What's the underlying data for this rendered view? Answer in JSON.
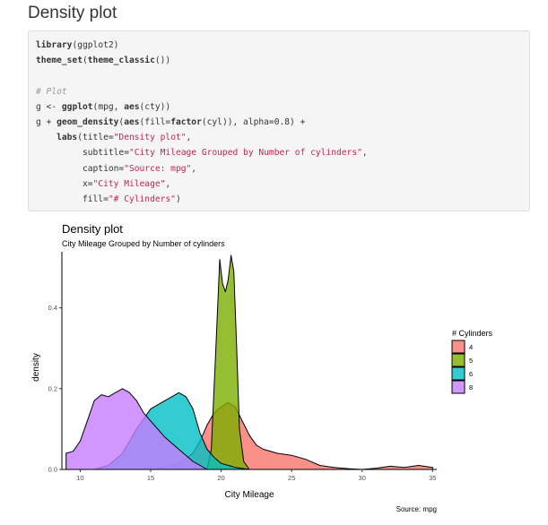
{
  "page": {
    "heading": "Density plot"
  },
  "code": {
    "lines": [
      [
        {
          "t": "library",
          "c": "fn"
        },
        {
          "t": "(ggplot2)",
          "c": "plain"
        }
      ],
      [
        {
          "t": "theme_set",
          "c": "fn"
        },
        {
          "t": "(",
          "c": "plain"
        },
        {
          "t": "theme_classic",
          "c": "fn"
        },
        {
          "t": "())",
          "c": "plain"
        }
      ],
      [],
      [
        {
          "t": "# Plot",
          "c": "comment"
        }
      ],
      [
        {
          "t": "g <- ",
          "c": "plain"
        },
        {
          "t": "ggplot",
          "c": "fn"
        },
        {
          "t": "(mpg, ",
          "c": "plain"
        },
        {
          "t": "aes",
          "c": "fn"
        },
        {
          "t": "(cty))",
          "c": "plain"
        }
      ],
      [
        {
          "t": "g + ",
          "c": "plain"
        },
        {
          "t": "geom_density",
          "c": "fn"
        },
        {
          "t": "(",
          "c": "plain"
        },
        {
          "t": "aes",
          "c": "fn"
        },
        {
          "t": "(fill=",
          "c": "plain"
        },
        {
          "t": "factor",
          "c": "fn"
        },
        {
          "t": "(cyl)), alpha=",
          "c": "plain"
        },
        {
          "t": "0.8",
          "c": "num"
        },
        {
          "t": ") +",
          "c": "plain"
        }
      ],
      [
        {
          "t": "    ",
          "c": "plain"
        },
        {
          "t": "labs",
          "c": "fn"
        },
        {
          "t": "(title=",
          "c": "plain"
        },
        {
          "t": "\"Density plot\"",
          "c": "str"
        },
        {
          "t": ",",
          "c": "plain"
        }
      ],
      [
        {
          "t": "         subtitle=",
          "c": "plain"
        },
        {
          "t": "\"City Mileage Grouped by Number of cylinders\"",
          "c": "str"
        },
        {
          "t": ",",
          "c": "plain"
        }
      ],
      [
        {
          "t": "         caption=",
          "c": "plain"
        },
        {
          "t": "\"Source: mpg\"",
          "c": "str"
        },
        {
          "t": ",",
          "c": "plain"
        }
      ],
      [
        {
          "t": "         x=",
          "c": "plain"
        },
        {
          "t": "\"City Mileage\"",
          "c": "str"
        },
        {
          "t": ",",
          "c": "plain"
        }
      ],
      [
        {
          "t": "         fill=",
          "c": "plain"
        },
        {
          "t": "\"# Cylinders\"",
          "c": "str"
        },
        {
          "t": ")",
          "c": "plain"
        }
      ]
    ]
  },
  "chart_data": {
    "type": "area",
    "title": "Density plot",
    "subtitle": "City Mileage Grouped by Number of cylinders",
    "caption": "Source: mpg",
    "xlabel": "City Mileage",
    "ylabel": "density",
    "xlim": [
      8.7,
      35.3
    ],
    "ylim": [
      0,
      0.53
    ],
    "xticks": [
      10,
      15,
      20,
      25,
      30,
      35
    ],
    "yticks": [
      0.0,
      0.2,
      0.4
    ],
    "ytick_labels": [
      "0.0",
      "0.2",
      "0.4"
    ],
    "grid": false,
    "legend": {
      "title": "# Cylinders",
      "position": "right"
    },
    "alpha": 0.8,
    "series": [
      {
        "name": "4",
        "color": "#F8766D",
        "x": [
          15,
          16,
          17,
          18,
          18.5,
          19,
          19.5,
          20,
          20.5,
          21,
          21.5,
          22,
          22.5,
          23,
          24,
          25,
          26,
          27,
          28,
          29,
          30,
          31,
          32,
          33,
          34,
          35
        ],
        "y": [
          0.0,
          0.005,
          0.015,
          0.04,
          0.07,
          0.11,
          0.14,
          0.155,
          0.165,
          0.155,
          0.12,
          0.085,
          0.06,
          0.05,
          0.04,
          0.035,
          0.025,
          0.01,
          0.005,
          0.002,
          0.0,
          0.003,
          0.008,
          0.005,
          0.01,
          0.005
        ]
      },
      {
        "name": "5",
        "color": "#7CAE00",
        "x": [
          19,
          19.3,
          19.6,
          19.9,
          20.1,
          20.3,
          20.5,
          20.7,
          20.9,
          21.1,
          21.3,
          21.6,
          22
        ],
        "y": [
          0.0,
          0.05,
          0.28,
          0.52,
          0.46,
          0.44,
          0.47,
          0.53,
          0.49,
          0.3,
          0.1,
          0.02,
          0.0
        ]
      },
      {
        "name": "6",
        "color": "#00BFC4",
        "x": [
          11,
          12,
          13,
          14,
          15,
          15.5,
          16,
          16.5,
          17,
          17.5,
          18,
          18.5,
          19,
          19.5,
          20,
          21,
          22
        ],
        "y": [
          0.0,
          0.01,
          0.04,
          0.1,
          0.15,
          0.16,
          0.17,
          0.18,
          0.19,
          0.18,
          0.15,
          0.09,
          0.05,
          0.03,
          0.015,
          0.005,
          0.0
        ]
      },
      {
        "name": "8",
        "color": "#C77CFF",
        "x": [
          9,
          9.5,
          10,
          10.5,
          11,
          11.5,
          12,
          12.5,
          13,
          13.5,
          14,
          14.5,
          15,
          15.5,
          16,
          17,
          18,
          19
        ],
        "y": [
          0.04,
          0.045,
          0.07,
          0.12,
          0.17,
          0.185,
          0.18,
          0.19,
          0.2,
          0.19,
          0.17,
          0.14,
          0.12,
          0.1,
          0.08,
          0.05,
          0.02,
          0.0
        ]
      }
    ]
  }
}
